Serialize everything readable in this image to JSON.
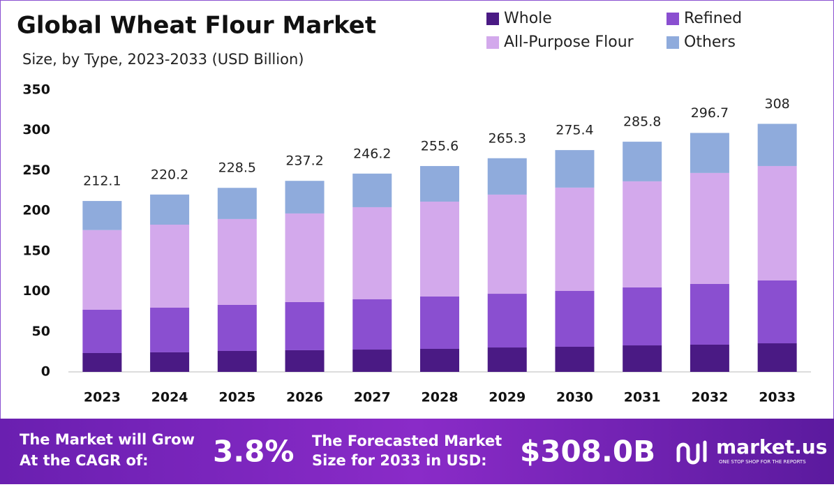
{
  "chart_data": {
    "type": "stacked_bar",
    "title": "Global Wheat Flour Market",
    "subtitle": "Size, by Type, 2023-2033 (USD Billion)",
    "categories": [
      "2023",
      "2024",
      "2025",
      "2026",
      "2027",
      "2028",
      "2029",
      "2030",
      "2031",
      "2032",
      "2033"
    ],
    "series": [
      {
        "name": "Whole",
        "color": "#4a1a84",
        "values": [
          23.4,
          24.3,
          26,
          26.9,
          27.7,
          28.6,
          30.3,
          31.2,
          32.9,
          33.8,
          35.5
        ]
      },
      {
        "name": "Refined",
        "color": "#8a4fd0",
        "values": [
          53.7,
          55.4,
          57.2,
          59.8,
          62.4,
          65,
          66.7,
          69.3,
          72,
          75.4,
          78
        ]
      },
      {
        "name": "All-Purpose Flour",
        "color": "#d3a9ec",
        "values": [
          99,
          103.1,
          106.6,
          110,
          114.4,
          117.8,
          123.1,
          128.3,
          131.7,
          137.8,
          142.1
        ]
      },
      {
        "name": "Others",
        "color": "#8fabdc",
        "values": [
          36.1,
          37.4,
          38.7,
          40.5,
          41.7,
          44.2,
          45.2,
          46.6,
          49.2,
          49.7,
          52.4
        ]
      }
    ],
    "totals": [
      212.1,
      220.2,
      228.5,
      237.2,
      246.2,
      255.6,
      265.3,
      275.4,
      285.8,
      296.7,
      308.0
    ],
    "ylim": [
      0,
      350
    ],
    "yticks": [
      0,
      50,
      100,
      150,
      200,
      250,
      300,
      350
    ],
    "grid": false
  },
  "footer": {
    "cagr_label": [
      "The Market will Grow",
      "At the CAGR of:"
    ],
    "cagr": "3.8%",
    "forecast_label": [
      "The Forecasted Market",
      "Size for 2033 in USD:"
    ],
    "forecast_value": "$308.0B",
    "brand": "market.us",
    "tagline": "ONE STOP SHOP FOR THE REPORTS"
  }
}
